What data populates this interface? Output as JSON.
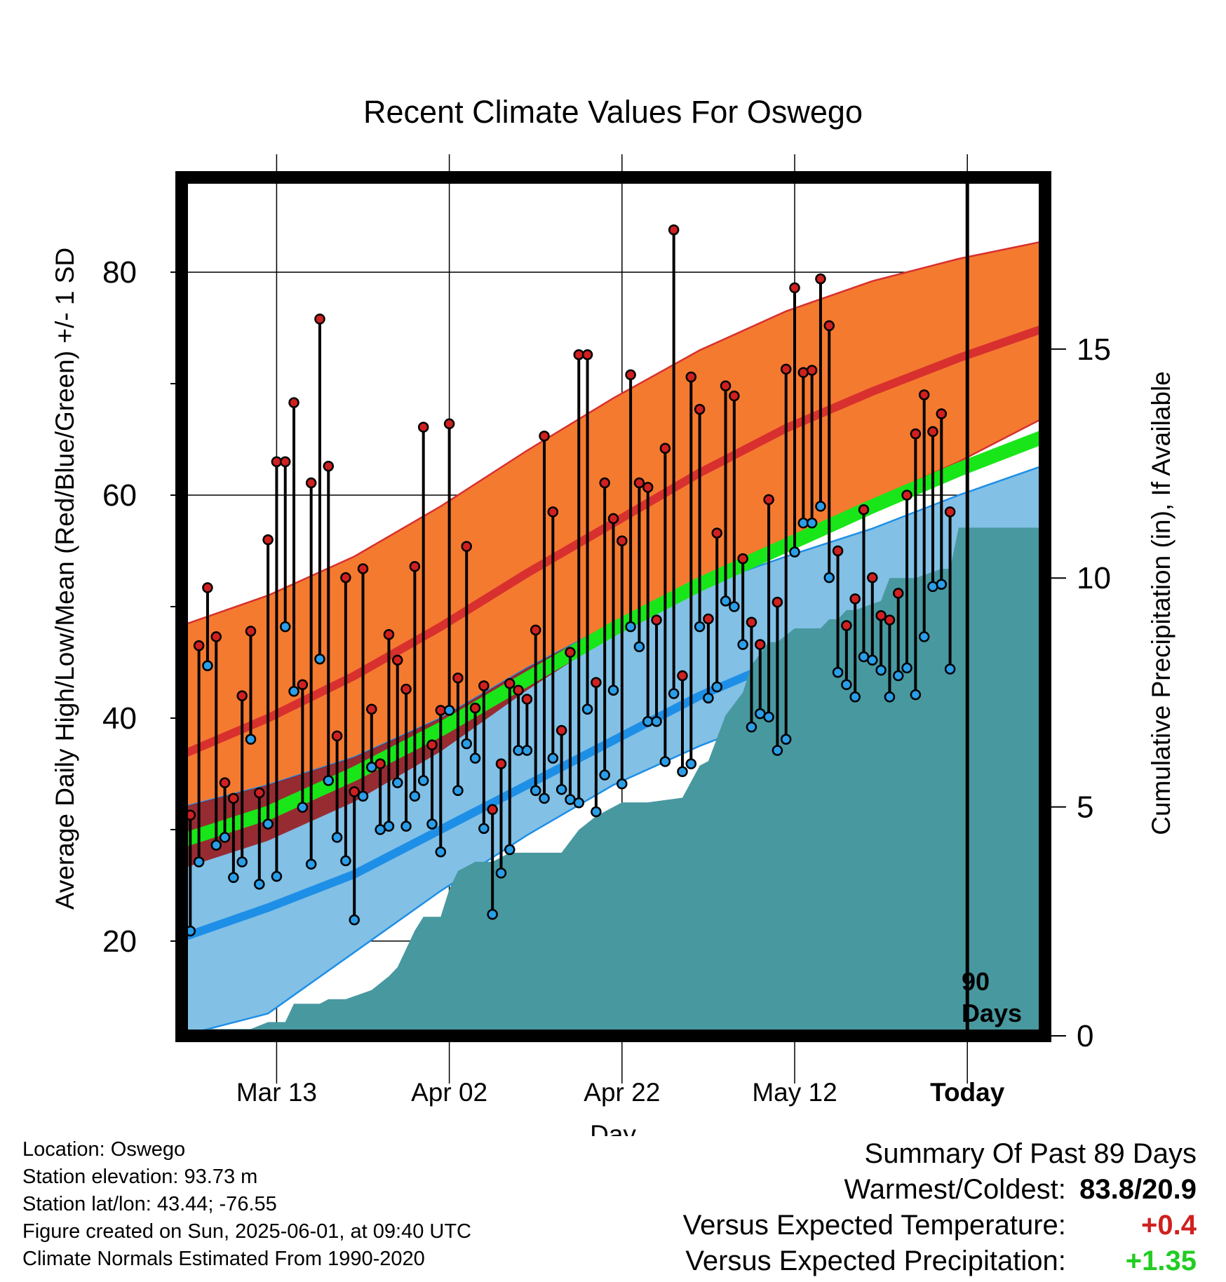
{
  "colors": {
    "high_band": "#f47a30",
    "high_mean": "#d8302e",
    "low_band": "#82c0e6",
    "low_mean": "#1e8fe6",
    "avg_mean": "#19e619",
    "overlap": "#9a1212",
    "precip": "#4898a0",
    "high_dot": "#d02020",
    "low_dot": "#2a9ee8",
    "positive_temp": "#d02020",
    "positive_precip": "#22cc22"
  },
  "chart_data": {
    "type": "line",
    "title": "Recent Climate Values For Oswego",
    "xlabel": "Day",
    "ylabel": "Average Daily High/Low/Mean (Red/Blue/Green) +/- 1 SD",
    "y2label": "Cumulative Precipitation (in), If Available",
    "ylim": [
      11.5,
      88.5
    ],
    "y2lim": [
      0,
      18.75
    ],
    "yticks": [
      20,
      40,
      60,
      80
    ],
    "y2ticks": [
      0,
      5,
      10,
      15
    ],
    "xticks": [
      {
        "day": 11,
        "label": "Mar 13"
      },
      {
        "day": 31,
        "label": "Apr 02"
      },
      {
        "day": 51,
        "label": "Apr 22"
      },
      {
        "day": 71,
        "label": "May 12"
      },
      {
        "day": 91,
        "label": "Today"
      }
    ],
    "x_range_days": [
      0,
      100
    ],
    "today_label": "90 Days",
    "normals": {
      "x": [
        0,
        10,
        20,
        30,
        40,
        50,
        60,
        70,
        80,
        90,
        100
      ],
      "high_mean": [
        36.7,
        40,
        43.8,
        48.2,
        53,
        57.5,
        62,
        66,
        69.3,
        72.3,
        75
      ],
      "high_upper": [
        48.3,
        51,
        54.5,
        59,
        64,
        68.7,
        73,
        76.5,
        79.2,
        81.2,
        82.8
      ],
      "high_lower": [
        26.5,
        29,
        32.5,
        37,
        42.5,
        47.5,
        52,
        56,
        59.5,
        63,
        67
      ],
      "low_mean": [
        20.3,
        23,
        26,
        30,
        34,
        38,
        42,
        45.3,
        49,
        52.5,
        55.8
      ],
      "low_upper": [
        32,
        34,
        36.5,
        40,
        44.5,
        48.5,
        51.8,
        54.5,
        57,
        60,
        62.7
      ],
      "low_lower": [
        11.5,
        13.5,
        19,
        24.5,
        29.5,
        34,
        37.5,
        40.5,
        43,
        45.8,
        49
      ],
      "avg_mean": [
        29,
        31.5,
        35,
        39,
        43.5,
        48,
        52,
        55.5,
        59,
        62.3,
        65.3
      ]
    },
    "series": [
      {
        "name": "High",
        "values": [
          31.3,
          46.5,
          51.7,
          47.3,
          34.2,
          32.8,
          42,
          47.8,
          33.3,
          56,
          63,
          63,
          68.3,
          43,
          61.1,
          75.8,
          62.6,
          38.4,
          52.6,
          33.4,
          53.4,
          40.8,
          35.9,
          47.5,
          45.2,
          42.6,
          53.6,
          66.1,
          37.6,
          40.7,
          66.4,
          43.6,
          55.4,
          40.9,
          42.9,
          31.8,
          35.9,
          43.1,
          42.5,
          41.7,
          47.9,
          65.3,
          58.5,
          38.9,
          45.9,
          72.6,
          72.6,
          43.2,
          61.1,
          57.9,
          55.9,
          70.8,
          61.1,
          60.7,
          48.8,
          64.2,
          83.8,
          43.8,
          70.6,
          67.7,
          48.9,
          56.6,
          69.8,
          68.9,
          54.3,
          48.6,
          46.6,
          59.6,
          50.4,
          71.3,
          78.6,
          71,
          71.2,
          79.4,
          75.2,
          55,
          48.3,
          50.7,
          58.7,
          52.6,
          49.2,
          48.8,
          51.2,
          60,
          65.5,
          69,
          65.7,
          67.3,
          58.5
        ]
      },
      {
        "name": "Low",
        "values": [
          20.9,
          27.1,
          44.7,
          28.6,
          29.3,
          25.7,
          27.1,
          38.1,
          25.1,
          30.5,
          25.8,
          48.2,
          42.4,
          32,
          26.9,
          45.3,
          34.4,
          29.3,
          27.2,
          21.9,
          33,
          35.6,
          30,
          30.3,
          34.2,
          30.3,
          33,
          34.4,
          30.5,
          28,
          40.7,
          33.5,
          37.7,
          36.4,
          30.1,
          22.4,
          26.1,
          28.2,
          37.1,
          37.1,
          33.5,
          32.8,
          36.4,
          33.6,
          32.7,
          32.4,
          40.8,
          31.6,
          34.9,
          42.5,
          34.1,
          48.2,
          46.4,
          39.7,
          39.7,
          36.1,
          42.2,
          35.2,
          35.9,
          48.2,
          41.8,
          42.8,
          50.5,
          50,
          46.6,
          39.2,
          40.4,
          40.1,
          37.1,
          38.1,
          54.9,
          57.5,
          57.5,
          59,
          52.6,
          44.1,
          43,
          41.9,
          45.5,
          45.2,
          44.3,
          41.9,
          43.8,
          44.5,
          42.1,
          47.3,
          51.8,
          52,
          44.4
        ]
      }
    ],
    "precip_cumulative": {
      "x": [
        1.5,
        3,
        8,
        10,
        12,
        13,
        16,
        17,
        19,
        22,
        24,
        25,
        27,
        28,
        30,
        31,
        32,
        34,
        36,
        38,
        44,
        46,
        48,
        51,
        54,
        58,
        60,
        61,
        63,
        65,
        66,
        68,
        69,
        71,
        72,
        74,
        75,
        76,
        77,
        78,
        81,
        82,
        85,
        88,
        89,
        90,
        100
      ],
      "values": [
        0.05,
        0.15,
        0.15,
        0.3,
        0.3,
        0.7,
        0.7,
        0.8,
        0.8,
        1,
        1.3,
        1.5,
        2.3,
        2.6,
        2.6,
        3.2,
        3.6,
        3.8,
        3.8,
        4,
        4,
        4.5,
        4.8,
        5.1,
        5.1,
        5.2,
        5.9,
        6,
        7,
        7.5,
        8.1,
        8.6,
        8.6,
        8.9,
        8.9,
        8.9,
        9.1,
        9.1,
        9.3,
        9.3,
        9.5,
        10,
        10,
        10.2,
        10.2,
        11.1,
        11.1
      ]
    }
  },
  "info": {
    "location": "Location: Oswego",
    "elevation": "Station elevation: 93.73 m",
    "latlon": "Station lat/lon: 43.44; -76.55",
    "created": "Figure created on Sun, 2025-06-01, at 09:40 UTC",
    "normals": "Climate Normals Estimated From 1990-2020"
  },
  "summary": {
    "title": "Summary Of Past 89 Days",
    "warmest_label": "Warmest/Coldest:",
    "warmest_value": "83.8/20.9",
    "temp_label": "Versus Expected Temperature:",
    "temp_value": "+0.4",
    "precip_label": "Versus Expected Precipitation:",
    "precip_value": "+1.35"
  }
}
